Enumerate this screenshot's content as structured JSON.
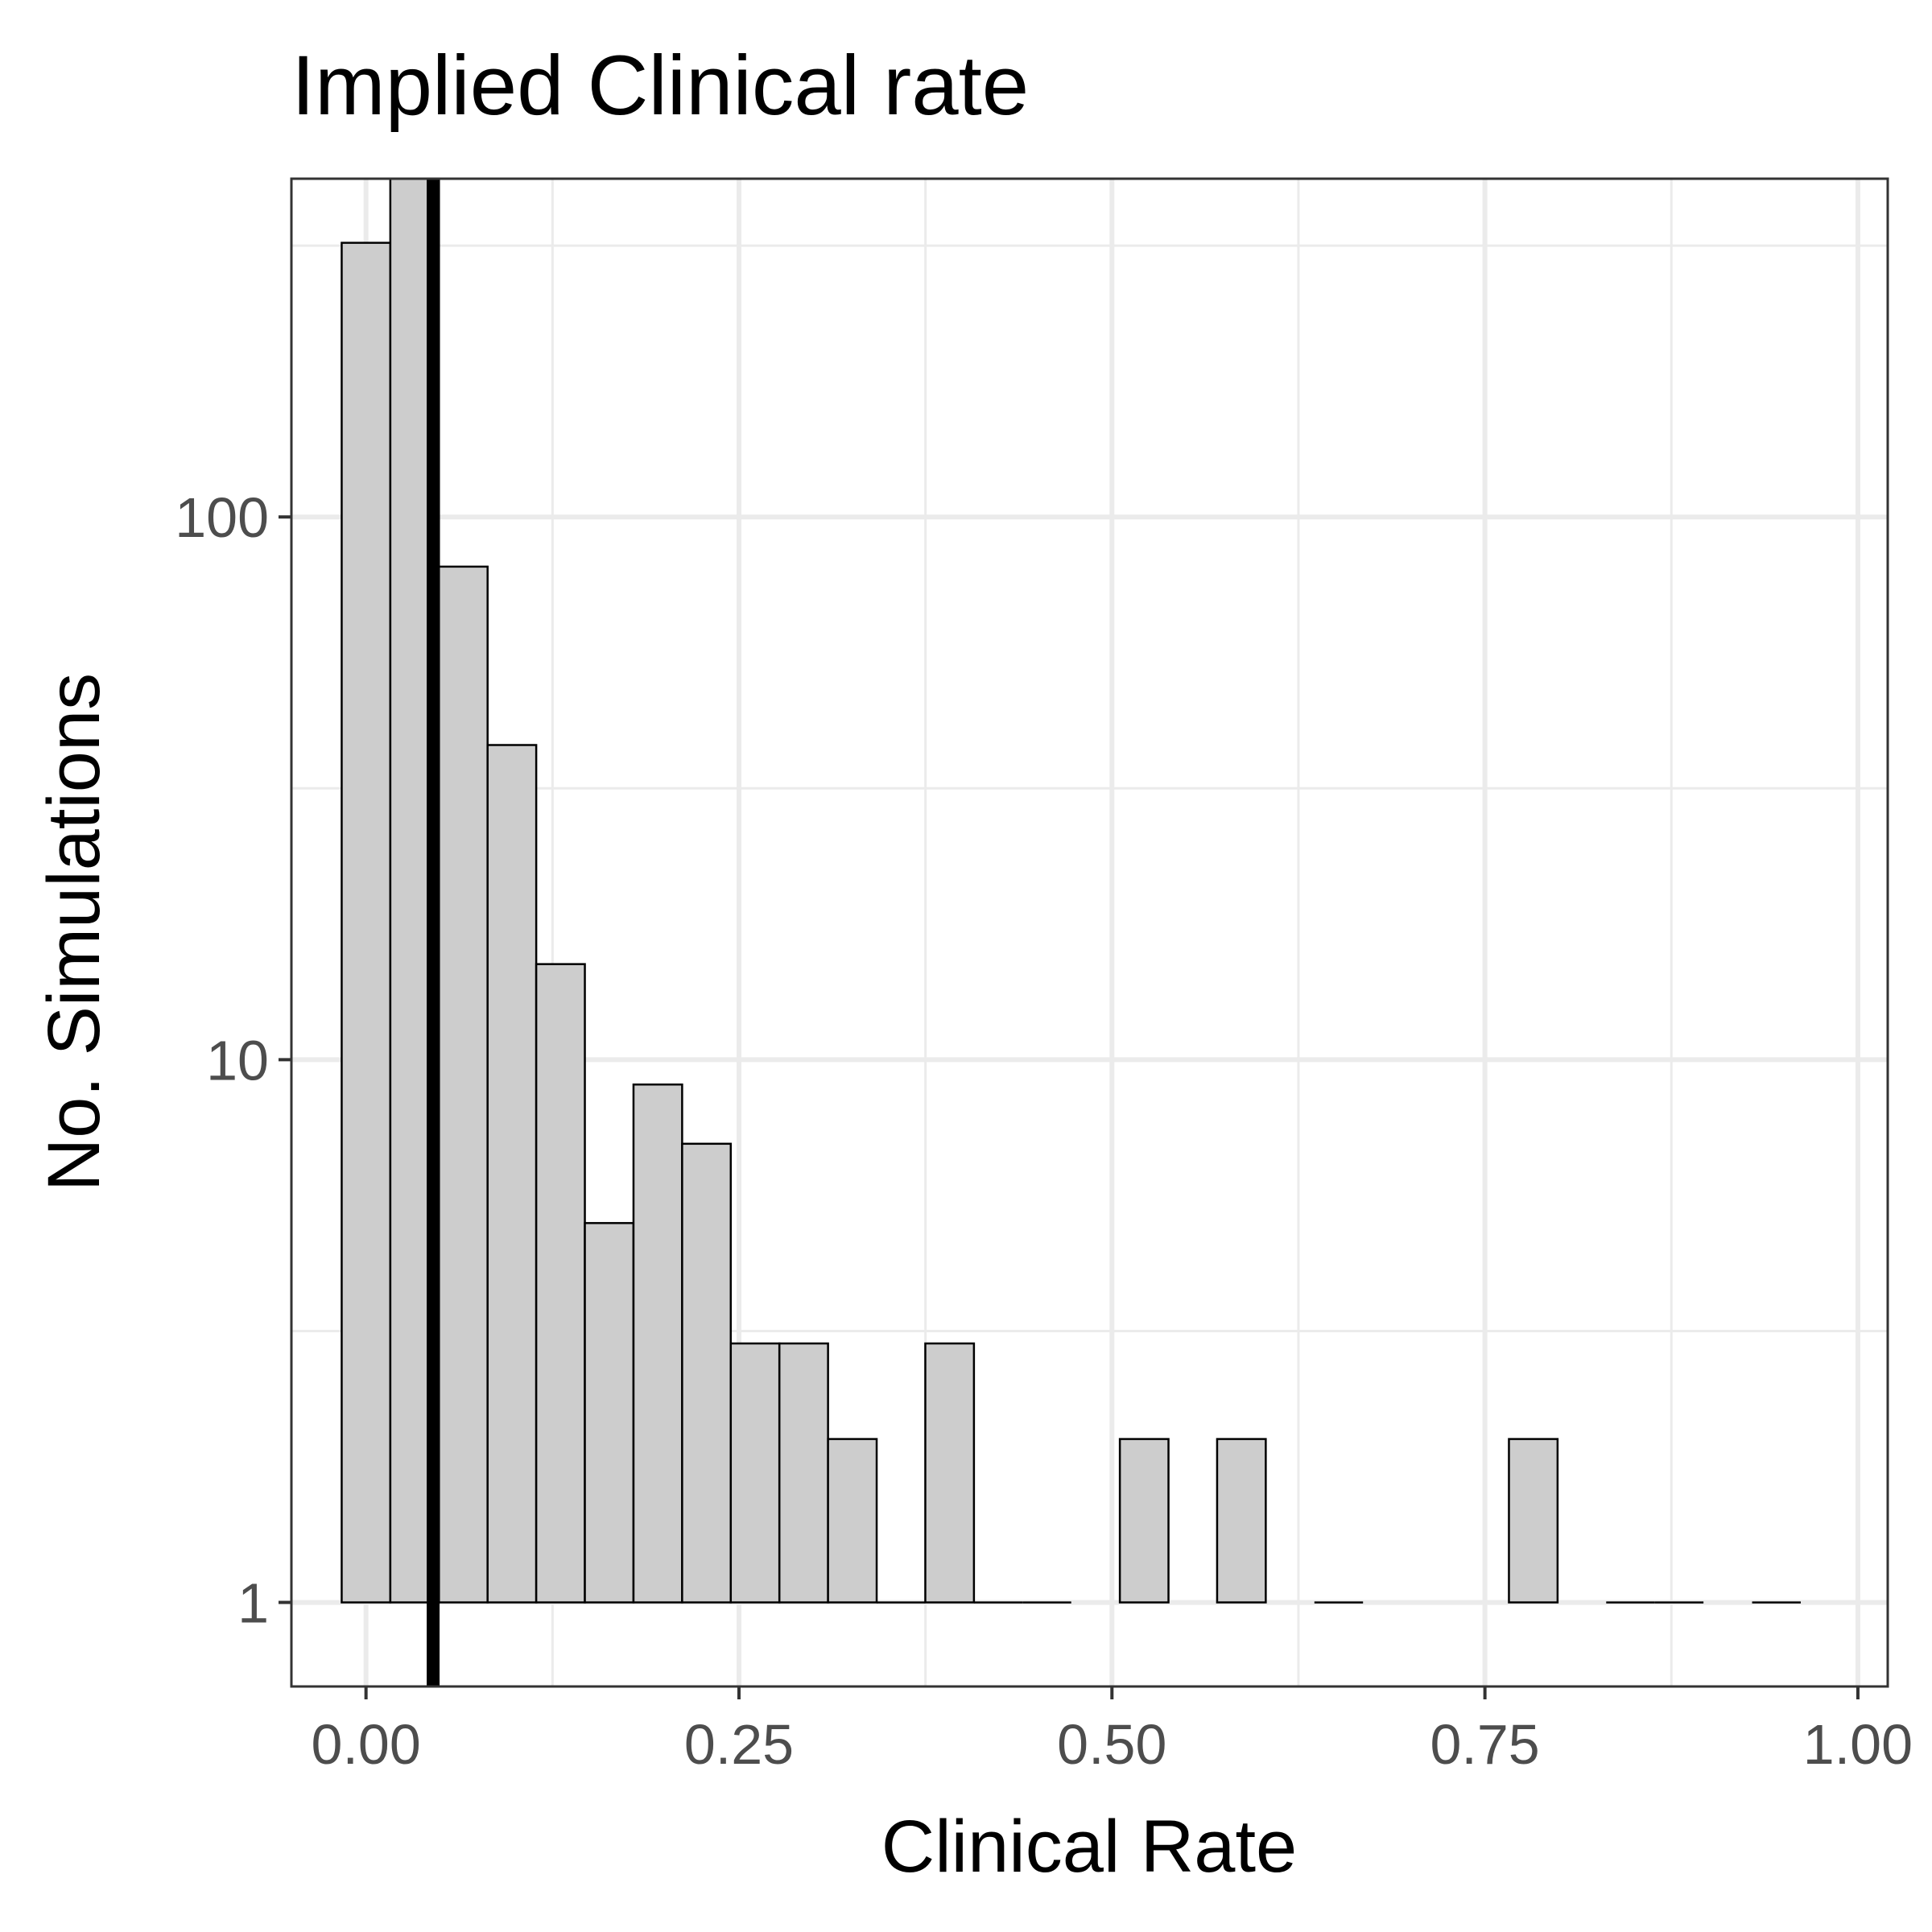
{
  "chart_data": {
    "type": "bar",
    "subtype": "histogram",
    "title": "Implied Clinical rate",
    "xlabel": "Clinical Rate",
    "ylabel": "No. Simulations",
    "y_scale": "log10",
    "xlim": [
      -0.05,
      1.02
    ],
    "ylim": [
      0.7,
      420
    ],
    "x_ticks": [
      0.0,
      0.25,
      0.5,
      0.75,
      1.0
    ],
    "x_tick_labels": [
      "0.00",
      "0.25",
      "0.50",
      "0.75",
      "1.00"
    ],
    "y_ticks": [
      1,
      10,
      100
    ],
    "y_tick_labels": [
      "1",
      "10",
      "100"
    ],
    "grid": true,
    "bin_width": 0.0326,
    "bins": [
      {
        "x0": -0.0163,
        "x1": 0.0163,
        "count": 320
      },
      {
        "x0": 0.0163,
        "x1": 0.0489,
        "count": 420
      },
      {
        "x0": 0.0489,
        "x1": 0.0815,
        "count": 81
      },
      {
        "x0": 0.0815,
        "x1": 0.1141,
        "count": 38
      },
      {
        "x0": 0.1141,
        "x1": 0.1467,
        "count": 15
      },
      {
        "x0": 0.1467,
        "x1": 0.1793,
        "count": 5
      },
      {
        "x0": 0.1793,
        "x1": 0.2119,
        "count": 9
      },
      {
        "x0": 0.2119,
        "x1": 0.2445,
        "count": 7
      },
      {
        "x0": 0.2445,
        "x1": 0.2771,
        "count": 3
      },
      {
        "x0": 0.2771,
        "x1": 0.3097,
        "count": 3
      },
      {
        "x0": 0.3097,
        "x1": 0.3423,
        "count": 2
      },
      {
        "x0": 0.3423,
        "x1": 0.3749,
        "count": 1
      },
      {
        "x0": 0.3749,
        "x1": 0.4075,
        "count": 3
      },
      {
        "x0": 0.4075,
        "x1": 0.4401,
        "count": 1
      },
      {
        "x0": 0.4401,
        "x1": 0.4727,
        "count": 1
      },
      {
        "x0": 0.5053,
        "x1": 0.5379,
        "count": 2
      },
      {
        "x0": 0.5705,
        "x1": 0.6031,
        "count": 2
      },
      {
        "x0": 0.6357,
        "x1": 0.6683,
        "count": 1
      },
      {
        "x0": 0.7661,
        "x1": 0.7987,
        "count": 2
      },
      {
        "x0": 0.8313,
        "x1": 0.8639,
        "count": 1
      },
      {
        "x0": 0.8639,
        "x1": 0.8965,
        "count": 1
      },
      {
        "x0": 0.9291,
        "x1": 0.9617,
        "count": 1
      }
    ],
    "reference_line": {
      "x": 0.045
    },
    "colors": {
      "bar_fill": "#cdcdcd",
      "bar_stroke": "#000000",
      "grid": "#ebebeb",
      "panel_border": "#333333",
      "reference_line": "#000000",
      "tick_label": "#4d4d4d"
    }
  }
}
